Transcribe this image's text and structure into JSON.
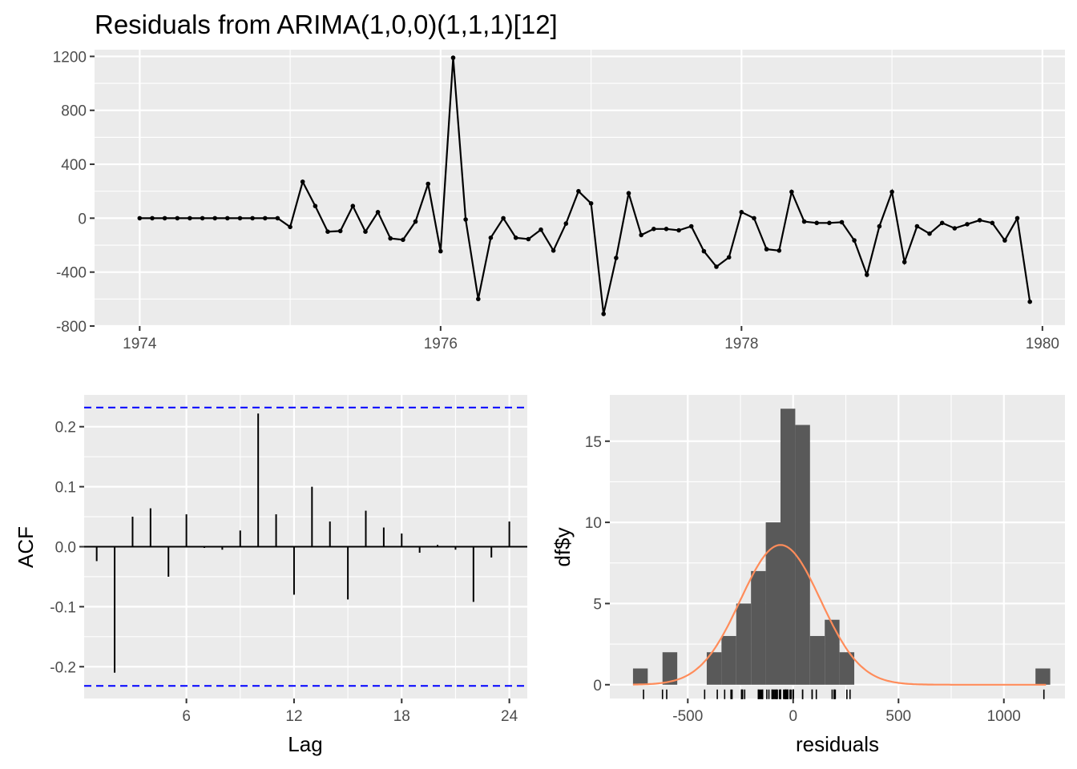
{
  "title": "Residuals from ARIMA(1,0,0)(1,1,1)[12]",
  "colors": {
    "panel": "#ebebeb",
    "grid": "#ffffff",
    "line": "#000000",
    "ci": "#0000ff",
    "bars": "#595959",
    "density": "#ff8c5a"
  },
  "chart_data": [
    {
      "type": "line",
      "title": "Residuals from ARIMA(1,0,0)(1,1,1)[12]",
      "xlabel": "",
      "ylabel": "",
      "x_start": 1974,
      "x_step": 0.08333333,
      "xlim": [
        1973.7,
        1980.15
      ],
      "ylim": [
        -800,
        1250
      ],
      "xticks": [
        1974,
        1976,
        1978,
        1980
      ],
      "yticks": [
        -800,
        -400,
        0,
        400,
        800,
        1200
      ],
      "grid": true,
      "series": [
        {
          "values": [
            0,
            0,
            0,
            0,
            0,
            0,
            0,
            0,
            0,
            0,
            0,
            0,
            -65,
            270,
            90,
            -100,
            -95,
            90,
            -100,
            45,
            -150,
            -160,
            -25,
            255,
            -245,
            1190,
            -10,
            -600,
            -145,
            0,
            -145,
            -155,
            -85,
            -240,
            -40,
            200,
            110,
            -710,
            -295,
            185,
            -125,
            -80,
            -80,
            -90,
            -60,
            -245,
            -360,
            -290,
            45,
            0,
            -230,
            -240,
            195,
            -25,
            -35,
            -35,
            -30,
            -165,
            -420,
            -60,
            195,
            -325,
            -60,
            -115,
            -35,
            -75,
            -45,
            -15,
            -35,
            -165,
            0,
            -620
          ]
        }
      ]
    },
    {
      "type": "bar",
      "title": "",
      "xlabel": "Lag",
      "ylabel": "ACF",
      "categories": [
        1,
        2,
        3,
        4,
        5,
        6,
        7,
        8,
        9,
        10,
        11,
        12,
        13,
        14,
        15,
        16,
        17,
        18,
        19,
        20,
        21,
        22,
        23,
        24
      ],
      "values": [
        -0.024,
        -0.21,
        0.05,
        0.064,
        -0.05,
        0.054,
        -0.002,
        -0.005,
        0.027,
        0.222,
        0.054,
        -0.08,
        0.1,
        0.042,
        -0.088,
        0.06,
        0.032,
        0.022,
        -0.01,
        0.003,
        -0.005,
        -0.092,
        -0.018,
        0.042
      ],
      "ci": 0.232,
      "xticks": [
        6,
        12,
        18,
        24
      ],
      "yticks": [
        -0.2,
        -0.1,
        0.0,
        0.1,
        0.2
      ],
      "ytick_labels": [
        "-0.2",
        "-0.1",
        "0.0",
        "0.1",
        "0.2"
      ],
      "xlim": [
        0.3,
        25.0
      ],
      "ylim": [
        -0.253,
        0.253
      ],
      "grid": true
    },
    {
      "type": "histogram",
      "title": "",
      "xlabel": "residuals",
      "ylabel": "df$y",
      "bin_width": 70,
      "bins": [
        {
          "from": -760,
          "to": -690,
          "count": 1
        },
        {
          "from": -620,
          "to": -550,
          "count": 2
        },
        {
          "from": -410,
          "to": -340,
          "count": 2
        },
        {
          "from": -340,
          "to": -270,
          "count": 3
        },
        {
          "from": -270,
          "to": -200,
          "count": 5
        },
        {
          "from": -200,
          "to": -130,
          "count": 7
        },
        {
          "from": -130,
          "to": -60,
          "count": 10
        },
        {
          "from": -60,
          "to": 10,
          "count": 17
        },
        {
          "from": 10,
          "to": 80,
          "count": 16
        },
        {
          "from": 80,
          "to": 150,
          "count": 3
        },
        {
          "from": 150,
          "to": 220,
          "count": 4
        },
        {
          "from": 220,
          "to": 290,
          "count": 2
        },
        {
          "from": 1150,
          "to": 1220,
          "count": 1
        }
      ],
      "density": {
        "mean": -60,
        "sd": 190,
        "scale": 4100
      },
      "xticks": [
        -500,
        0,
        500,
        1000
      ],
      "yticks": [
        0,
        5,
        10,
        15
      ],
      "xlim": [
        -870,
        1290
      ],
      "ylim": [
        -0.85,
        17.85
      ],
      "grid": true,
      "rug": true
    }
  ]
}
